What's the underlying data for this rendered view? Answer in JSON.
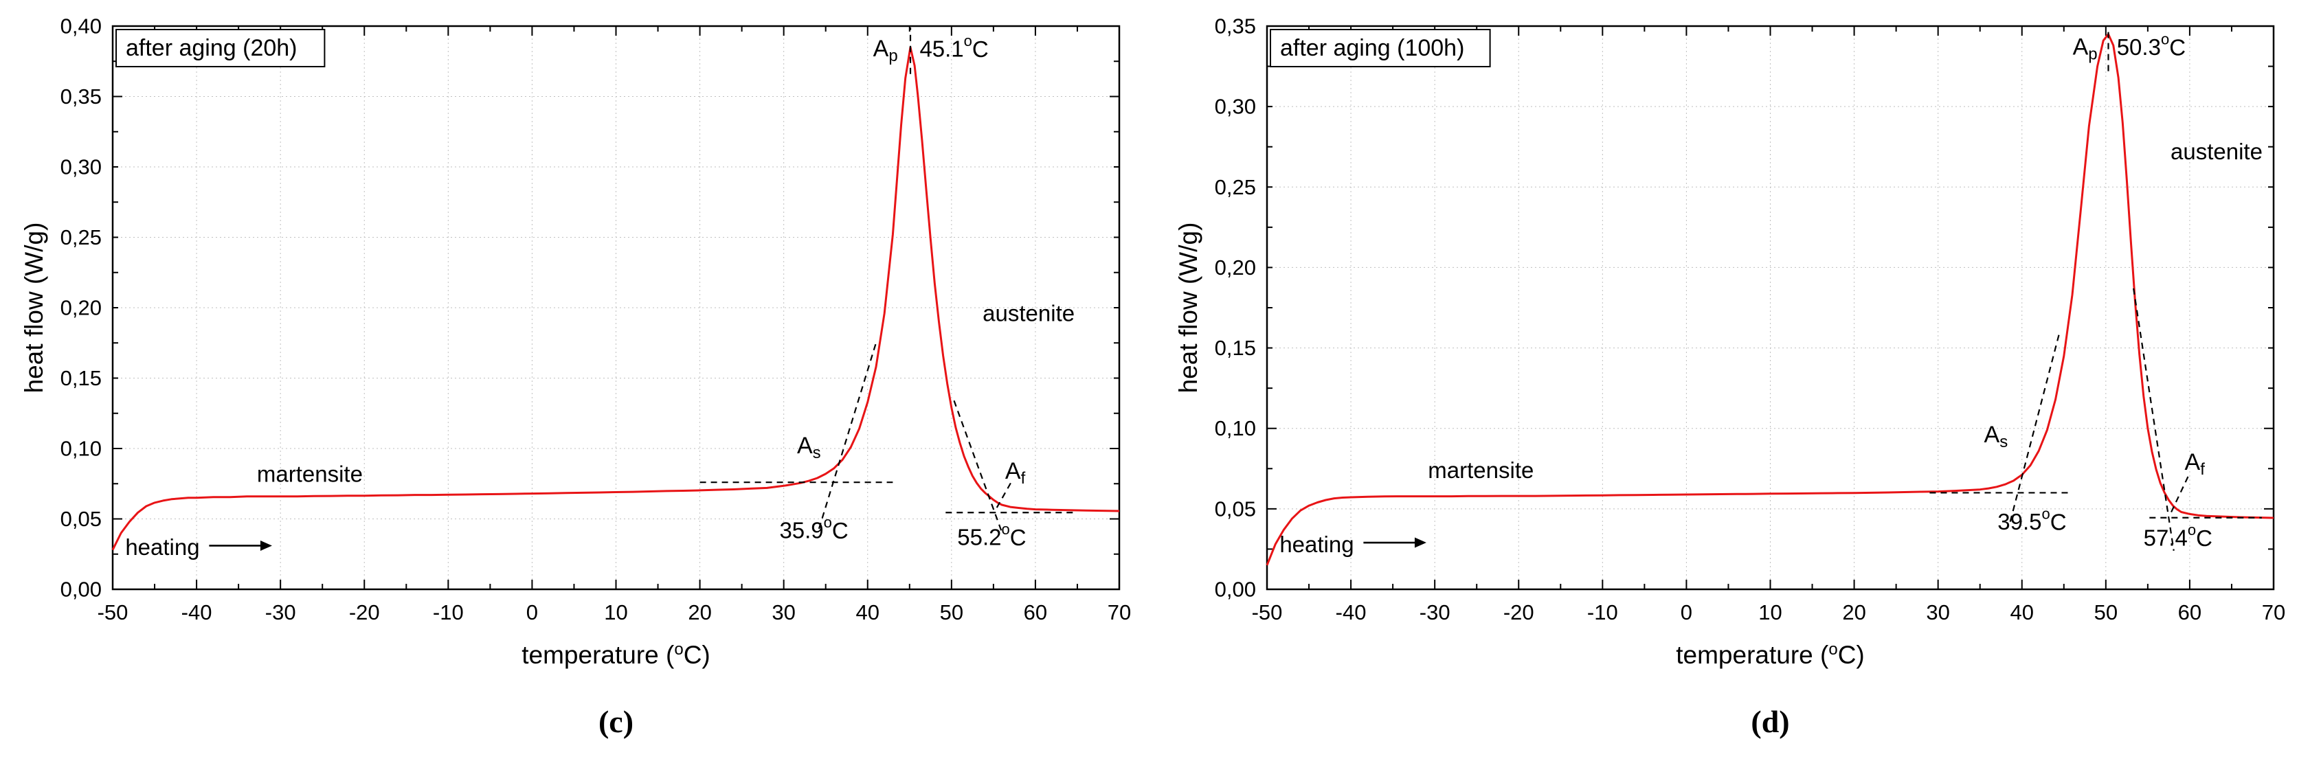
{
  "page": {
    "background": "#ffffff"
  },
  "chart_data": [
    {
      "caption": "(c)",
      "legend": "after aging (20h)",
      "type": "line",
      "xlabel": "temperature (°C)",
      "ylabel": "heat flow (W/g)",
      "xlim": [
        -50,
        70
      ],
      "ylim": [
        0,
        0.4
      ],
      "x_tick_step": 10,
      "y_tick_step": 0.05,
      "x_minor_step": 5,
      "y_minor_step": 0.025,
      "x_tick_labels": [
        "-50",
        "-40",
        "-30",
        "-20",
        "-10",
        "0",
        "10",
        "20",
        "30",
        "40",
        "50",
        "60",
        "70"
      ],
      "y_tick_labels": [
        "0,00",
        "0,05",
        "0,10",
        "0,15",
        "0,20",
        "0,25",
        "0,30",
        "0,35",
        "0,40"
      ],
      "grid": true,
      "curve_color": "#e81416",
      "transformation_temperatures": {
        "As": "35.9°C",
        "Ap": "45.1°C",
        "Af": "55.2°C"
      },
      "points": [
        [
          -50,
          0.028
        ],
        [
          -49,
          0.04
        ],
        [
          -48,
          0.048
        ],
        [
          -47,
          0.0545
        ],
        [
          -46,
          0.059
        ],
        [
          -45,
          0.0615
        ],
        [
          -44,
          0.063
        ],
        [
          -43,
          0.064
        ],
        [
          -42,
          0.0645
        ],
        [
          -41,
          0.065
        ],
        [
          -40,
          0.065
        ],
        [
          -38,
          0.0655
        ],
        [
          -36,
          0.0655
        ],
        [
          -34,
          0.066
        ],
        [
          -32,
          0.066
        ],
        [
          -30,
          0.066
        ],
        [
          -28,
          0.066
        ],
        [
          -26,
          0.0662
        ],
        [
          -24,
          0.0663
        ],
        [
          -22,
          0.0665
        ],
        [
          -20,
          0.0665
        ],
        [
          -18,
          0.0667
        ],
        [
          -16,
          0.0668
        ],
        [
          -14,
          0.067
        ],
        [
          -12,
          0.067
        ],
        [
          -10,
          0.0672
        ],
        [
          -8,
          0.0673
        ],
        [
          -6,
          0.0675
        ],
        [
          -4,
          0.0676
        ],
        [
          -2,
          0.0678
        ],
        [
          0,
          0.068
        ],
        [
          2,
          0.0682
        ],
        [
          4,
          0.0684
        ],
        [
          6,
          0.0686
        ],
        [
          8,
          0.0688
        ],
        [
          10,
          0.069
        ],
        [
          12,
          0.0692
        ],
        [
          14,
          0.0695
        ],
        [
          16,
          0.0698
        ],
        [
          18,
          0.07
        ],
        [
          20,
          0.0703
        ],
        [
          22,
          0.0707
        ],
        [
          24,
          0.071
        ],
        [
          26,
          0.0715
        ],
        [
          28,
          0.072
        ],
        [
          30,
          0.0735
        ],
        [
          31,
          0.0745
        ],
        [
          32,
          0.0755
        ],
        [
          33,
          0.077
        ],
        [
          34,
          0.079
        ],
        [
          35,
          0.082
        ],
        [
          36,
          0.086
        ],
        [
          37,
          0.092
        ],
        [
          38,
          0.101
        ],
        [
          39,
          0.114
        ],
        [
          40,
          0.133
        ],
        [
          41,
          0.158
        ],
        [
          42,
          0.196
        ],
        [
          43,
          0.252
        ],
        [
          44,
          0.33
        ],
        [
          44.5,
          0.363
        ],
        [
          45.1,
          0.385
        ],
        [
          45.6,
          0.372
        ],
        [
          46,
          0.35
        ],
        [
          46.5,
          0.318
        ],
        [
          47,
          0.283
        ],
        [
          47.5,
          0.249
        ],
        [
          48,
          0.217
        ],
        [
          48.5,
          0.19
        ],
        [
          49,
          0.166
        ],
        [
          49.5,
          0.146
        ],
        [
          50,
          0.129
        ],
        [
          50.5,
          0.115
        ],
        [
          51,
          0.104
        ],
        [
          51.5,
          0.0945
        ],
        [
          52,
          0.087
        ],
        [
          52.5,
          0.0805
        ],
        [
          53,
          0.0755
        ],
        [
          53.5,
          0.0715
        ],
        [
          54,
          0.0685
        ],
        [
          54.5,
          0.066
        ],
        [
          55,
          0.0635
        ],
        [
          55.5,
          0.0615
        ],
        [
          56,
          0.06
        ],
        [
          57,
          0.0585
        ],
        [
          58,
          0.0578
        ],
        [
          59,
          0.0572
        ],
        [
          60,
          0.0568
        ],
        [
          62,
          0.0565
        ],
        [
          64,
          0.0562
        ],
        [
          66,
          0.056
        ],
        [
          68,
          0.0558
        ],
        [
          70,
          0.0556
        ]
      ],
      "annotations": {
        "peak": {
          "label": {
            "main": "A",
            "sub": "p"
          },
          "temp": "45.1°C",
          "x": 45.1,
          "y": 0.385,
          "label_pos": [
            43.6,
            0.384
          ],
          "temp_pos": [
            46.2,
            0.384
          ],
          "line": [
            [
              45.1,
              0.366
            ],
            [
              45.1,
              0.399
            ]
          ]
        },
        "onset": {
          "label": {
            "main": "A",
            "sub": "s"
          },
          "temp": "35.9°C",
          "x": 35.9,
          "label_pos": [
            33.0,
            0.102
          ],
          "temp_pos": [
            33.6,
            0.042
          ],
          "baseline": [
            [
              20.0,
              0.076
            ],
            [
              43.0,
              0.076
            ]
          ],
          "tangent": [
            [
              34.2,
              0.043
            ],
            [
              41.0,
              0.175
            ]
          ]
        },
        "offset": {
          "label": {
            "main": "A",
            "sub": "f"
          },
          "temp": "55.2°C",
          "x": 55.2,
          "label_pos": [
            57.6,
            0.084
          ],
          "temp_pos": [
            54.8,
            0.037
          ],
          "baseline": [
            [
              49.3,
              0.0545
            ],
            [
              64.8,
              0.0545
            ]
          ],
          "tangent": [
            [
              50.3,
              0.134
            ],
            [
              56.1,
              0.039
            ]
          ],
          "connector": [
            [
              55.4,
              0.058
            ],
            [
              57.2,
              0.077
            ]
          ]
        }
      },
      "phase_labels": [
        {
          "text": "martensite",
          "x": -26.5,
          "y": 0.082
        },
        {
          "text": "austenite",
          "x": 59.2,
          "y": 0.196
        }
      ],
      "heating": {
        "text": "heating",
        "text_pos": [
          -48.5,
          0.03
        ],
        "arrow": [
          [
            -38.5,
            0.031
          ],
          [
            -31.0,
            0.031
          ]
        ]
      }
    },
    {
      "caption": "(d)",
      "legend": "after aging (100h)",
      "type": "line",
      "xlabel": "temperature (°C)",
      "ylabel": "heat flow (W/g)",
      "xlim": [
        -50,
        70
      ],
      "ylim": [
        0,
        0.35
      ],
      "x_tick_step": 10,
      "y_tick_step": 0.05,
      "x_minor_step": 5,
      "y_minor_step": 0.025,
      "x_tick_labels": [
        "-50",
        "-40",
        "-30",
        "-20",
        "-10",
        "0",
        "10",
        "20",
        "30",
        "40",
        "50",
        "60",
        "70"
      ],
      "y_tick_labels": [
        "0,00",
        "0,05",
        "0,10",
        "0,15",
        "0,20",
        "0,25",
        "0,30",
        "0,35"
      ],
      "grid": true,
      "curve_color": "#e81416",
      "transformation_temperatures": {
        "As": "39.5°C",
        "Ap": "50.3°C",
        "Af": "57.4°C"
      },
      "points": [
        [
          -50,
          0.015
        ],
        [
          -49,
          0.028
        ],
        [
          -48,
          0.037
        ],
        [
          -47,
          0.044
        ],
        [
          -46,
          0.049
        ],
        [
          -45,
          0.052
        ],
        [
          -44,
          0.054
        ],
        [
          -43,
          0.0555
        ],
        [
          -42,
          0.0565
        ],
        [
          -41,
          0.057
        ],
        [
          -40,
          0.0572
        ],
        [
          -38,
          0.0575
        ],
        [
          -36,
          0.0577
        ],
        [
          -34,
          0.0578
        ],
        [
          -32,
          0.0578
        ],
        [
          -30,
          0.0578
        ],
        [
          -28,
          0.0578
        ],
        [
          -26,
          0.0579
        ],
        [
          -24,
          0.0579
        ],
        [
          -22,
          0.058
        ],
        [
          -20,
          0.058
        ],
        [
          -18,
          0.058
        ],
        [
          -16,
          0.0581
        ],
        [
          -14,
          0.0582
        ],
        [
          -12,
          0.0583
        ],
        [
          -10,
          0.0584
        ],
        [
          -8,
          0.0585
        ],
        [
          -6,
          0.0586
        ],
        [
          -4,
          0.0587
        ],
        [
          -2,
          0.0588
        ],
        [
          0,
          0.0589
        ],
        [
          2,
          0.059
        ],
        [
          4,
          0.0591
        ],
        [
          6,
          0.0592
        ],
        [
          8,
          0.0593
        ],
        [
          10,
          0.0594
        ],
        [
          12,
          0.0595
        ],
        [
          14,
          0.0596
        ],
        [
          16,
          0.0597
        ],
        [
          18,
          0.0598
        ],
        [
          20,
          0.0599
        ],
        [
          22,
          0.06
        ],
        [
          24,
          0.0602
        ],
        [
          26,
          0.0604
        ],
        [
          28,
          0.0606
        ],
        [
          30,
          0.0608
        ],
        [
          32,
          0.0612
        ],
        [
          34,
          0.0617
        ],
        [
          35,
          0.062
        ],
        [
          36,
          0.0627
        ],
        [
          37,
          0.0637
        ],
        [
          38,
          0.0652
        ],
        [
          39,
          0.0675
        ],
        [
          40,
          0.0712
        ],
        [
          41,
          0.077
        ],
        [
          42,
          0.086
        ],
        [
          43,
          0.099
        ],
        [
          44,
          0.118
        ],
        [
          45,
          0.145
        ],
        [
          46,
          0.183
        ],
        [
          47,
          0.235
        ],
        [
          48,
          0.288
        ],
        [
          49,
          0.325
        ],
        [
          49.7,
          0.341
        ],
        [
          50.3,
          0.345
        ],
        [
          50.9,
          0.338
        ],
        [
          51.5,
          0.318
        ],
        [
          52,
          0.29
        ],
        [
          52.5,
          0.254
        ],
        [
          53,
          0.215
        ],
        [
          53.5,
          0.178
        ],
        [
          54,
          0.146
        ],
        [
          54.5,
          0.12
        ],
        [
          55,
          0.1
        ],
        [
          55.5,
          0.0855
        ],
        [
          56,
          0.0745
        ],
        [
          56.5,
          0.066
        ],
        [
          57,
          0.06
        ],
        [
          57.5,
          0.0555
        ],
        [
          58,
          0.052
        ],
        [
          58.5,
          0.0497
        ],
        [
          59,
          0.048
        ],
        [
          60,
          0.0468
        ],
        [
          61,
          0.046
        ],
        [
          62,
          0.0456
        ],
        [
          64,
          0.0452
        ],
        [
          66,
          0.0448
        ],
        [
          68,
          0.0446
        ],
        [
          70,
          0.0444
        ]
      ],
      "annotations": {
        "peak": {
          "label": {
            "main": "A",
            "sub": "p"
          },
          "temp": "50.3°C",
          "x": 50.3,
          "y": 0.345,
          "label_pos": [
            49.0,
            0.337
          ],
          "temp_pos": [
            51.3,
            0.337
          ],
          "line": [
            [
              50.3,
              0.322
            ],
            [
              50.3,
              0.349
            ]
          ]
        },
        "onset": {
          "label": {
            "main": "A",
            "sub": "s"
          },
          "temp": "39.5°C",
          "x": 39.5,
          "label_pos": [
            36.9,
            0.096
          ],
          "temp_pos": [
            41.2,
            0.042
          ],
          "baseline": [
            [
              29.0,
              0.06
            ],
            [
              46.0,
              0.06
            ]
          ],
          "tangent": [
            [
              38.6,
              0.042
            ],
            [
              44.5,
              0.16
            ]
          ]
        },
        "offset": {
          "label": {
            "main": "A",
            "sub": "f"
          },
          "temp": "57.4°C",
          "x": 57.4,
          "label_pos": [
            60.6,
            0.079
          ],
          "temp_pos": [
            58.6,
            0.032
          ],
          "baseline": [
            [
              55.2,
              0.0445
            ],
            [
              68.6,
              0.0445
            ]
          ],
          "tangent": [
            [
              53.3,
              0.187
            ],
            [
              58.1,
              0.024
            ]
          ],
          "connector": [
            [
              57.8,
              0.048
            ],
            [
              59.8,
              0.07
            ]
          ]
        }
      },
      "phase_labels": [
        {
          "text": "martensite",
          "x": -24.5,
          "y": 0.074
        },
        {
          "text": "austenite",
          "x": 63.2,
          "y": 0.272
        }
      ],
      "heating": {
        "text": "heating",
        "text_pos": [
          -48.5,
          0.028
        ],
        "arrow": [
          [
            -38.5,
            0.029
          ],
          [
            -31.0,
            0.029
          ]
        ]
      }
    }
  ]
}
